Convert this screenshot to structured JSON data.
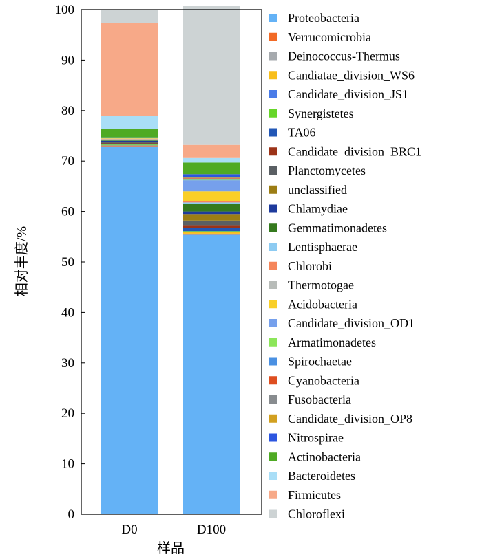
{
  "chart_data": {
    "type": "bar",
    "stacked": true,
    "title": "",
    "xlabel": "样品",
    "ylabel": "相对丰度/%",
    "ylim": [
      0,
      100
    ],
    "yticks": [
      0,
      10,
      20,
      30,
      40,
      50,
      60,
      70,
      80,
      90,
      100
    ],
    "categories": [
      "D0",
      "D100"
    ],
    "legend_position": "right",
    "grid": false,
    "series": [
      {
        "name": "Proteobacteria",
        "color": "#64B2F6",
        "values": [
          72.8,
          55.4
        ]
      },
      {
        "name": "Verrucomicrobia",
        "color": "#F26A26",
        "values": [
          0.1,
          0.1
        ]
      },
      {
        "name": "Deinococcus-Thermus",
        "color": "#A6AAAE",
        "values": [
          0.0,
          0.1
        ]
      },
      {
        "name": "Candiatae_division_WS6",
        "color": "#F8BE1A",
        "values": [
          0.2,
          0.3
        ]
      },
      {
        "name": "Candidate_division_JS1",
        "color": "#4A7CE8",
        "values": [
          0.1,
          0.1
        ]
      },
      {
        "name": "Synergistetes",
        "color": "#66D629",
        "values": [
          0.1,
          0.1
        ]
      },
      {
        "name": "TA06",
        "color": "#2257B6",
        "values": [
          0.1,
          0.6
        ]
      },
      {
        "name": "Candidate_division_BRC1",
        "color": "#9C3318",
        "values": [
          0.1,
          0.6
        ]
      },
      {
        "name": "Planctomycetes",
        "color": "#5A5F63",
        "values": [
          0.2,
          0.9
        ]
      },
      {
        "name": "unclassified",
        "color": "#9C7D14",
        "values": [
          0.1,
          1.3
        ]
      },
      {
        "name": "Chlamydiae",
        "color": "#1E3A9C",
        "values": [
          0.2,
          0.5
        ]
      },
      {
        "name": "Gemmatimonadetes",
        "color": "#357A1E",
        "values": [
          0.1,
          1.5
        ]
      },
      {
        "name": "Lentisphaerae",
        "color": "#8DCBF2",
        "values": [
          0.1,
          0.3
        ]
      },
      {
        "name": "Chlorobi",
        "color": "#F5855A",
        "values": [
          0.1,
          0.2
        ]
      },
      {
        "name": "Thermotogae",
        "color": "#B8BCB9",
        "values": [
          0.1,
          0.1
        ]
      },
      {
        "name": "Acidobacteria",
        "color": "#F9CF28",
        "values": [
          0.1,
          1.9
        ]
      },
      {
        "name": "Candidate_division_OD1",
        "color": "#76A0EC",
        "values": [
          0.1,
          2.2
        ]
      },
      {
        "name": "Armatimonadetes",
        "color": "#8CE65A",
        "values": [
          0.0,
          0.1
        ]
      },
      {
        "name": "Spirochaetae",
        "color": "#4A90E2",
        "values": [
          0.1,
          0.2
        ]
      },
      {
        "name": "Cyanobacteria",
        "color": "#DE4E20",
        "values": [
          0.0,
          0.1
        ]
      },
      {
        "name": "Fusobacteria",
        "color": "#888C8F",
        "values": [
          0.0,
          0.1
        ]
      },
      {
        "name": "Candidate_division_OP8",
        "color": "#D2A020",
        "values": [
          0.0,
          0.1
        ]
      },
      {
        "name": "Nitrospirae",
        "color": "#2C56E0",
        "values": [
          0.0,
          0.6
        ]
      },
      {
        "name": "Actinobacteria",
        "color": "#4FAA24",
        "values": [
          1.7,
          2.3
        ]
      },
      {
        "name": "Bacteroidetes",
        "color": "#A9DEF7",
        "values": [
          2.6,
          0.9
        ]
      },
      {
        "name": "Firmicutes",
        "color": "#F7A988",
        "values": [
          18.3,
          2.6
        ]
      },
      {
        "name": "Chloroflexi",
        "color": "#CDD3D4",
        "values": [
          2.6,
          27.5
        ]
      }
    ]
  }
}
